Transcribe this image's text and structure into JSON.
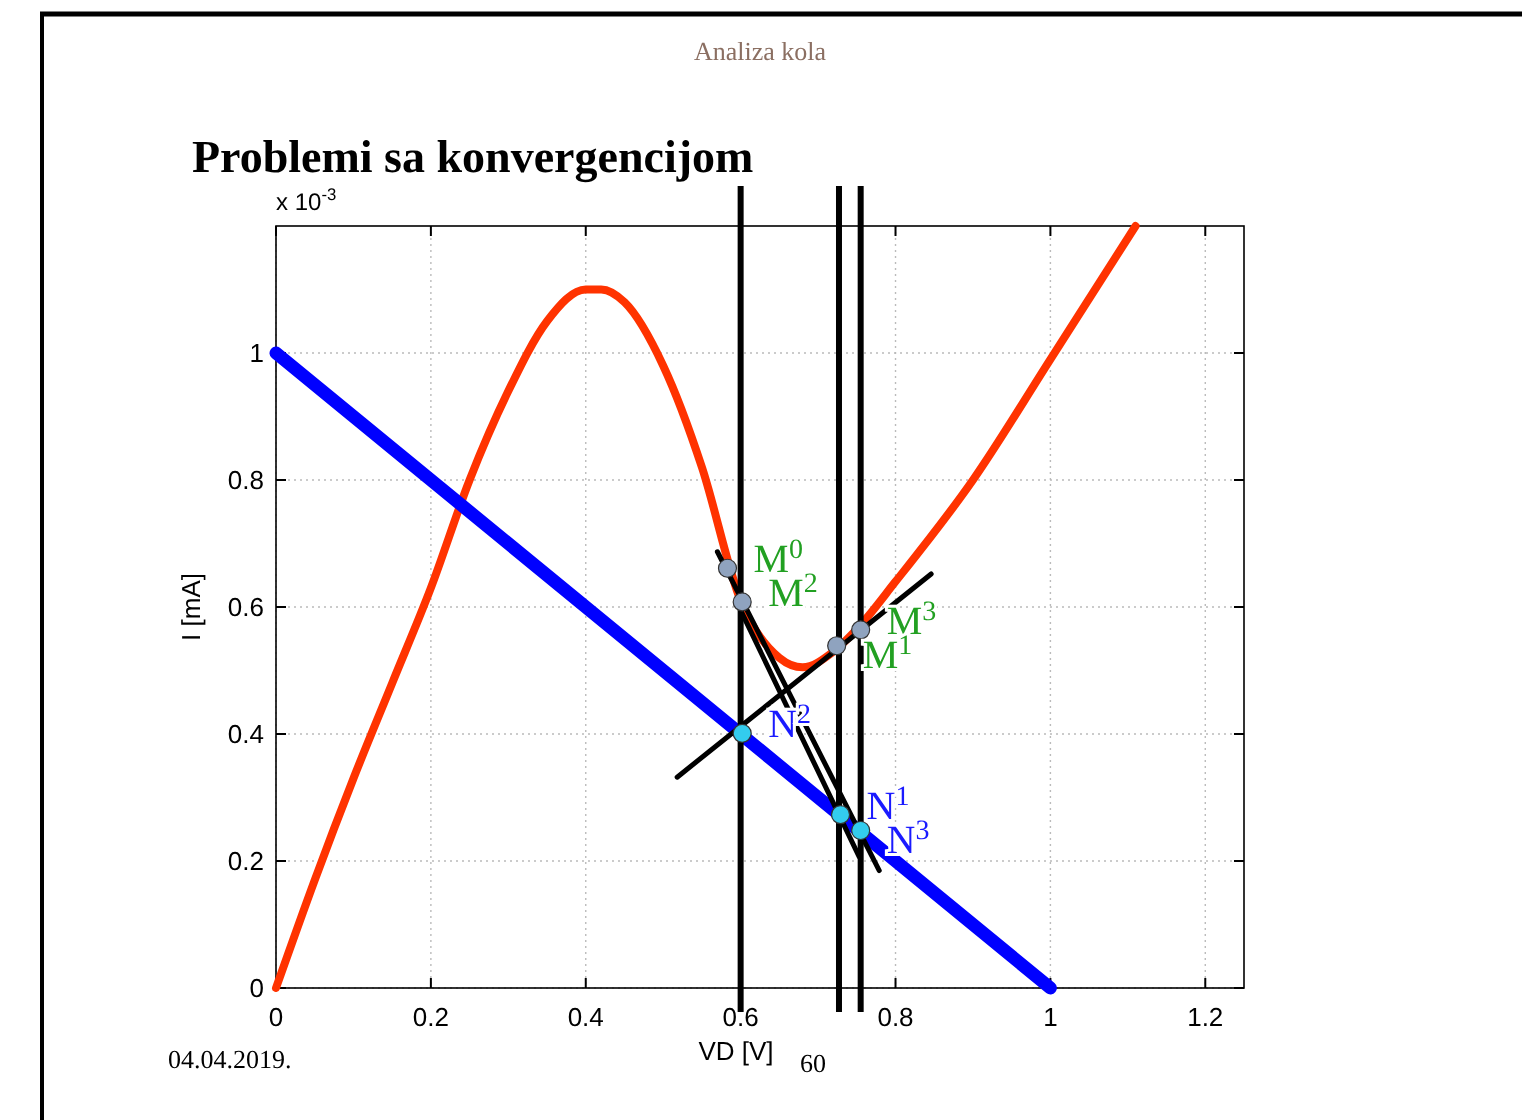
{
  "chart_data": {
    "type": "line",
    "title": "Problemi sa konvergencijom",
    "xlabel": "VD [V]",
    "ylabel": "I [mA]",
    "annotations": [
      "Analiza kola",
      "x 10$^{-3}$",
      "04.04.2019.",
      "60",
      {
        "text": "M$^{0}$",
        "x": 0.583,
        "y": 0.661
      },
      {
        "text": "M$^{2}$",
        "x": 0.602,
        "y": 0.608
      },
      {
        "text": "M$^{3}$",
        "x": 0.755,
        "y": 0.564
      },
      {
        "text": "M$^{1}$",
        "x": 0.724,
        "y": 0.539
      },
      {
        "text": "N$^{2}$",
        "x": 0.602,
        "y": 0.401
      },
      {
        "text": "N$^{1}$",
        "x": 0.729,
        "y": 0.273
      },
      {
        "text": "N$^{3}$",
        "x": 0.755,
        "y": 0.248
      }
    ],
    "xlim": [
      0,
      1.25
    ],
    "xticks": [
      0,
      0.2,
      0.4,
      0.6,
      0.8,
      1,
      1.2
    ],
    "ylim": [
      0,
      1.2
    ],
    "yticks": [
      0,
      0.2,
      0.4,
      0.6,
      0.8,
      1
    ],
    "grid": true,
    "series": [
      {
        "type": "line",
        "color": "#ff3300",
        "x": [
          0,
          0.05,
          0.1,
          0.15,
          0.2,
          0.25,
          0.3,
          0.35,
          0.4,
          0.42,
          0.45,
          0.5,
          0.55,
          0.6,
          0.65,
          0.68,
          0.72,
          0.75,
          0.8,
          0.9,
          1,
          1.11
        ],
        "values": [
          0,
          0.17,
          0.33,
          0.48,
          0.63,
          0.8,
          0.94,
          1.05,
          1.1,
          1.1,
          1.08,
          0.98,
          0.82,
          0.61,
          0.52,
          0.505,
          0.53,
          0.565,
          0.64,
          0.8,
          0.99,
          1.2
        ]
      },
      {
        "type": "line",
        "color": "#0000ff",
        "x": [
          0,
          1
        ],
        "values": [
          1,
          0
        ]
      },
      {
        "type": "line",
        "color": "#000000",
        "x": [
          0.57,
          0.779
        ],
        "values": [
          0.687,
          0.185
        ]
      },
      {
        "type": "line",
        "color": "#000000",
        "x": [
          0.596,
          0.753
        ],
        "values": [
          0.605,
          0.207
        ]
      },
      {
        "type": "line",
        "color": "#000000",
        "x": [
          0.518,
          0.846
        ],
        "values": [
          0.332,
          0.652
        ]
      },
      {
        "type": "scatter",
        "color": "#8fa3bf",
        "marker": "circle",
        "x": [
          0.583,
          0.602,
          0.755,
          0.724
        ],
        "values": [
          0.661,
          0.608,
          0.564,
          0.539
        ]
      },
      {
        "type": "scatter",
        "color": "#33ccee",
        "marker": "circle",
        "x": [
          0.602,
          0.729,
          0.755
        ],
        "values": [
          0.401,
          0.273,
          0.248
        ]
      }
    ],
    "ref_lines": [
      {
        "axis": "x",
        "value": 0.6,
        "color": "#000000"
      },
      {
        "axis": "x",
        "value": 0.727,
        "color": "#000000"
      },
      {
        "axis": "x",
        "value": 0.755,
        "color": "#000000"
      }
    ]
  }
}
